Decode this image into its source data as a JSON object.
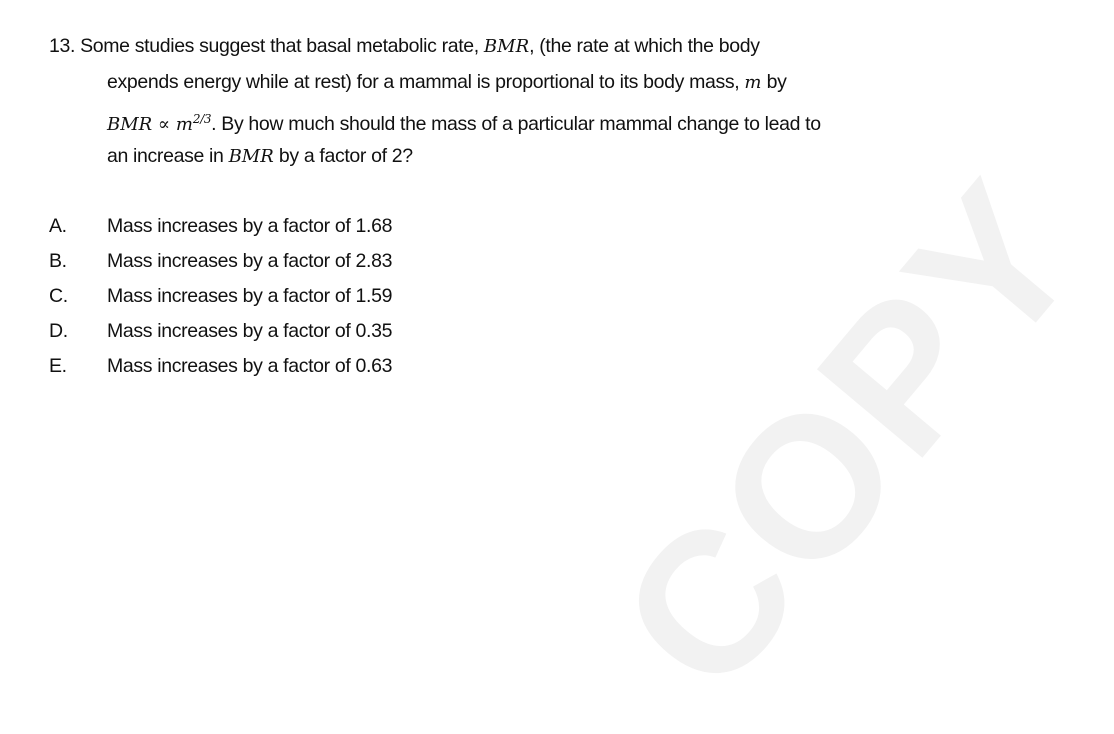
{
  "watermark": "COPY",
  "question": {
    "number": "13.",
    "line1": "Some studies suggest that basal metabolic rate, ",
    "line1_math": "BMR",
    "line1_end": ", (the rate at which the body",
    "line2": "expends energy while at rest) for a mammal is proportional to its body mass, ",
    "line2_math": "m",
    "line2_end": " by",
    "line3_math": "BMR ∝ m",
    "line3_exp": "2/3",
    "line3_end": ".  By how much should the mass of a particular mammal change to lead to",
    "line4": "an increase in ",
    "line4_math": "BMR",
    "line4_end": " by a factor of 2?"
  },
  "options": [
    {
      "letter": "A.",
      "text": "Mass increases by a factor of 1.68"
    },
    {
      "letter": "B.",
      "text": "Mass increases by a factor of 2.83"
    },
    {
      "letter": "C.",
      "text": "Mass increases by a factor of 1.59"
    },
    {
      "letter": "D.",
      "text": "Mass increases by a factor of 0.35"
    },
    {
      "letter": "E.",
      "text": "Mass increases by a factor of 0.63"
    }
  ]
}
